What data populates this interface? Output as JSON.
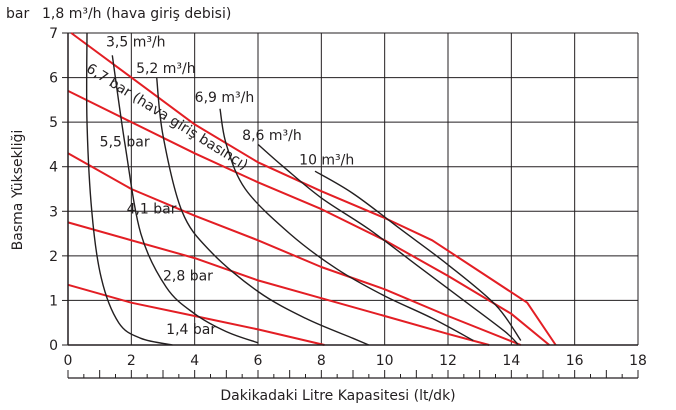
{
  "chart_data": {
    "type": "line",
    "title": "",
    "header_unit": "bar",
    "header_note": "1,8 m³/h (hava giriş debisi)",
    "xlabel": "Dakikadaki Litre Kapasitesi (lt/dk)",
    "ylabel": "Basma Yüksekliği",
    "xlim": [
      0,
      18
    ],
    "ylim": [
      0,
      7
    ],
    "xticks": [
      "0",
      "2",
      "4",
      "6",
      "8",
      "10",
      "12",
      "14",
      "16",
      "18"
    ],
    "yticks": [
      "0",
      "1",
      "2",
      "3",
      "4",
      "5",
      "6",
      "7"
    ],
    "grid": true,
    "air_flow_curves": [
      {
        "name": "1,8 m³/h",
        "points": [
          [
            0.6,
            7
          ],
          [
            0.6,
            5
          ],
          [
            0.75,
            3
          ],
          [
            1.05,
            1.5
          ],
          [
            1.6,
            0.5
          ],
          [
            2.3,
            0.15
          ],
          [
            3.3,
            0
          ]
        ]
      },
      {
        "name": "3,5 m³/h",
        "points": [
          [
            1.4,
            6.5
          ],
          [
            1.8,
            4.5
          ],
          [
            2.3,
            2.5
          ],
          [
            3.1,
            1.3
          ],
          [
            4.0,
            0.7
          ],
          [
            5.0,
            0.3
          ],
          [
            6.0,
            0.05
          ]
        ]
      },
      {
        "name": "5,2 m³/h",
        "points": [
          [
            2.8,
            6.0
          ],
          [
            3.0,
            4.7
          ],
          [
            3.6,
            3.0
          ],
          [
            4.5,
            2.1
          ],
          [
            6.0,
            1.2
          ],
          [
            7.5,
            0.6
          ],
          [
            9.0,
            0.15
          ],
          [
            9.5,
            0
          ]
        ]
      },
      {
        "name": "6,9 m³/h",
        "points": [
          [
            4.8,
            5.3
          ],
          [
            5.0,
            4.5
          ],
          [
            5.6,
            3.5
          ],
          [
            7.0,
            2.5
          ],
          [
            8.5,
            1.7
          ],
          [
            10.0,
            1.1
          ],
          [
            11.5,
            0.6
          ],
          [
            12.8,
            0.1
          ]
        ]
      },
      {
        "name": "8,6 m³/h",
        "points": [
          [
            6.0,
            4.5
          ],
          [
            6.8,
            4.0
          ],
          [
            8.0,
            3.3
          ],
          [
            9.5,
            2.6
          ],
          [
            11.0,
            1.8
          ],
          [
            12.5,
            1.0
          ],
          [
            13.8,
            0.3
          ],
          [
            14.2,
            0.02
          ]
        ]
      },
      {
        "name": "10 m³/h",
        "points": [
          [
            7.8,
            3.9
          ],
          [
            9.0,
            3.4
          ],
          [
            10.5,
            2.6
          ],
          [
            12.0,
            1.8
          ],
          [
            13.5,
            0.9
          ],
          [
            14.3,
            0.1
          ]
        ]
      }
    ],
    "air_pressure_lines": [
      {
        "name": "6,7 bar (hava giriş basıncı)",
        "points": [
          [
            0.1,
            7
          ],
          [
            4,
            4.95
          ],
          [
            6,
            4.1
          ],
          [
            8,
            3.45
          ],
          [
            10,
            2.85
          ],
          [
            11.5,
            2.35
          ],
          [
            13,
            1.65
          ],
          [
            14.5,
            0.95
          ],
          [
            15.4,
            0
          ]
        ]
      },
      {
        "name": "5,5 bar",
        "points": [
          [
            0,
            5.7
          ],
          [
            4,
            4.3
          ],
          [
            6,
            3.65
          ],
          [
            8,
            3.05
          ],
          [
            10,
            2.35
          ],
          [
            12,
            1.55
          ],
          [
            14,
            0.7
          ],
          [
            15.2,
            0
          ]
        ]
      },
      {
        "name": "4,1 bar",
        "points": [
          [
            0,
            4.3
          ],
          [
            2,
            3.5
          ],
          [
            4,
            2.9
          ],
          [
            6,
            2.35
          ],
          [
            8,
            1.75
          ],
          [
            10,
            1.25
          ],
          [
            12,
            0.65
          ],
          [
            14.3,
            0
          ]
        ]
      },
      {
        "name": "2,8 bar",
        "points": [
          [
            0,
            2.75
          ],
          [
            4,
            1.95
          ],
          [
            6,
            1.45
          ],
          [
            8,
            1.05
          ],
          [
            10,
            0.65
          ],
          [
            12,
            0.25
          ],
          [
            13.3,
            0
          ]
        ]
      },
      {
        "name": "1,4 bar",
        "points": [
          [
            0,
            1.35
          ],
          [
            2,
            0.95
          ],
          [
            4,
            0.65
          ],
          [
            6,
            0.35
          ],
          [
            8.1,
            0
          ]
        ]
      }
    ],
    "annotations": [
      {
        "text": "3,5 m³/h",
        "x": 1.2,
        "y": 6.7
      },
      {
        "text": "5,2 m³/h",
        "x": 2.15,
        "y": 6.1
      },
      {
        "text": "6,9 m³/h",
        "x": 4.0,
        "y": 5.45
      },
      {
        "text": "8,6 m³/h",
        "x": 5.5,
        "y": 4.6
      },
      {
        "text": "10 m³/h",
        "x": 7.3,
        "y": 4.05
      },
      {
        "text": "6,7 bar (hava giriş basıncı)",
        "x": 0.55,
        "y": 6.15,
        "rotate": 32
      },
      {
        "text": "5,5 bar",
        "x": 1.0,
        "y": 4.45
      },
      {
        "text": "4,1 bar",
        "x": 1.85,
        "y": 2.95
      },
      {
        "text": "2,8 bar",
        "x": 3.0,
        "y": 1.45
      },
      {
        "text": "1,4 bar",
        "x": 3.1,
        "y": 0.25
      }
    ],
    "colors": {
      "pressure": "#e31e24",
      "flow": "#231f20",
      "grid": "#231f20"
    }
  }
}
